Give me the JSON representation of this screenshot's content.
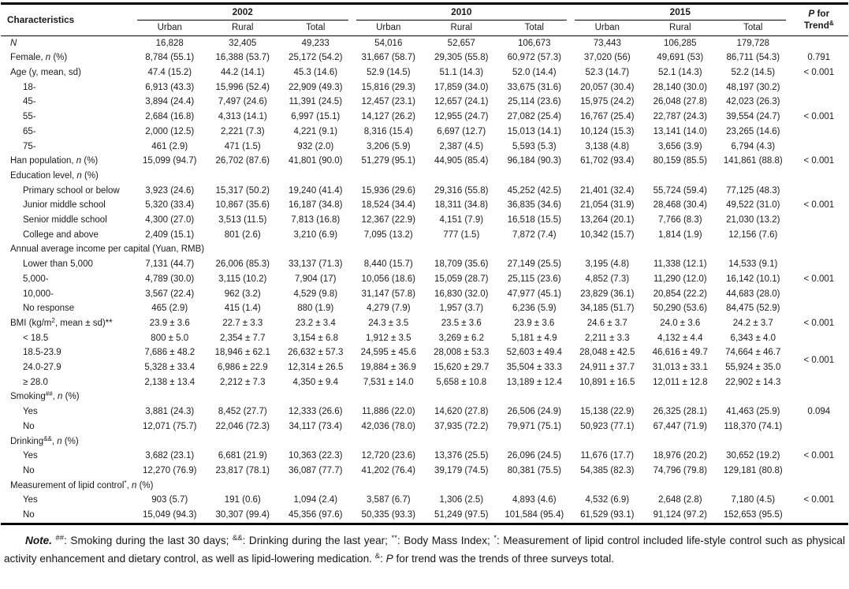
{
  "table": {
    "title_col": "Characteristics",
    "p_header_line1": [
      [
        "P",
        "i"
      ],
      [
        " for",
        ""
      ]
    ],
    "p_header_line2": [
      [
        "Trend",
        ""
      ],
      [
        "&",
        "sup"
      ]
    ],
    "year_groups": [
      {
        "label": "2002",
        "cols": [
          "Urban",
          "Rural",
          "Total"
        ]
      },
      {
        "label": "2010",
        "cols": [
          "Urban",
          "Rural",
          "Total"
        ]
      },
      {
        "label": "2015",
        "cols": [
          "Urban",
          "Rural",
          "Total"
        ]
      }
    ],
    "rows": [
      {
        "label": [
          [
            "N",
            "i"
          ]
        ],
        "indent": false,
        "cells": [
          "16,828",
          "32,405",
          "49,233",
          "54,016",
          "52,657",
          "106,673",
          "73,443",
          "106,285",
          "179,728"
        ],
        "p": ""
      },
      {
        "label": [
          [
            "Female, ",
            ""
          ],
          [
            "n",
            "i"
          ],
          [
            " (%)",
            ""
          ]
        ],
        "indent": false,
        "cells": [
          "8,784 (55.1)",
          "16,388 (53.7)",
          "25,172 (54.2)",
          "31,667 (58.7)",
          "29,305 (55.8)",
          "60,972 (57.3)",
          "37,020 (56)",
          "49,691 (53)",
          "86,711 (54.3)"
        ],
        "p": "0.791"
      },
      {
        "label": [
          [
            "Age (y, mean, sd)",
            ""
          ]
        ],
        "indent": false,
        "cells": [
          "47.4 (15.2)",
          "44.2 (14.1)",
          "45.3 (14.6)",
          "52.9 (14.5)",
          "51.1 (14.3)",
          "52.0 (14.4)",
          "52.3 (14.7)",
          "52.1 (14.3)",
          "52.2 (14.5)"
        ],
        "p": "< 0.001"
      },
      {
        "label": [
          [
            "18-",
            ""
          ]
        ],
        "indent": true,
        "cells": [
          "6,913 (43.3)",
          "15,996 (52.4)",
          "22,909 (49.3)",
          "15,816 (29.3)",
          "17,859 (34.0)",
          "33,675 (31.6)",
          "20,057 (30.4)",
          "28,140 (30.0)",
          "48,197 (30.2)"
        ],
        "p": ""
      },
      {
        "label": [
          [
            "45-",
            ""
          ]
        ],
        "indent": true,
        "cells": [
          "3,894 (24.4)",
          "7,497 (24.6)",
          "11,391 (24.5)",
          "12,457 (23.1)",
          "12,657 (24.1)",
          "25,114 (23.6)",
          "15,975 (24.2)",
          "26,048 (27.8)",
          "42,023 (26.3)"
        ],
        "p": ""
      },
      {
        "label": [
          [
            "55-",
            ""
          ]
        ],
        "indent": true,
        "cells": [
          "2,684 (16.8)",
          "4,313 (14.1)",
          "6,997 (15.1)",
          "14,127 (26.2)",
          "12,955 (24.7)",
          "27,082 (25.4)",
          "16,767 (25.4)",
          "22,787 (24.3)",
          "39,554 (24.7)"
        ],
        "p": "< 0.001"
      },
      {
        "label": [
          [
            "65-",
            ""
          ]
        ],
        "indent": true,
        "cells": [
          "2,000 (12.5)",
          "2,221 (7.3)",
          "4,221 (9.1)",
          "8,316 (15.4)",
          "6,697 (12.7)",
          "15,013 (14.1)",
          "10,124 (15.3)",
          "13,141 (14.0)",
          "23,265 (14.6)"
        ],
        "p": ""
      },
      {
        "label": [
          [
            "75-",
            ""
          ]
        ],
        "indent": true,
        "cells": [
          "461 (2.9)",
          "471 (1.5)",
          "932 (2.0)",
          "3,206 (5.9)",
          "2,387 (4.5)",
          "5,593 (5.3)",
          "3,138 (4.8)",
          "3,656 (3.9)",
          "6,794 (4.3)"
        ],
        "p": ""
      },
      {
        "label": [
          [
            "Han population, ",
            ""
          ],
          [
            "n",
            "i"
          ],
          [
            " (%)",
            ""
          ]
        ],
        "indent": false,
        "cells": [
          "15,099 (94.7)",
          "26,702 (87.6)",
          "41,801 (90.0)",
          "51,279 (95.1)",
          "44,905 (85.4)",
          "96,184 (90.3)",
          "61,702 (93.4)",
          "80,159 (85.5)",
          "141,861 (88.8)"
        ],
        "p": "< 0.001"
      },
      {
        "label": [
          [
            "Education level, ",
            ""
          ],
          [
            "n",
            "i"
          ],
          [
            " (%)",
            ""
          ]
        ],
        "indent": false,
        "cells": null,
        "p": ""
      },
      {
        "label": [
          [
            "Primary school or below",
            ""
          ]
        ],
        "indent": true,
        "cells": [
          "3,923 (24.6)",
          "15,317 (50.2)",
          "19,240 (41.4)",
          "15,936 (29.6)",
          "29,316 (55.8)",
          "45,252 (42.5)",
          "21,401 (32.4)",
          "55,724 (59.4)",
          "77,125 (48.3)"
        ],
        "p": ""
      },
      {
        "label": [
          [
            "Junior middle school",
            ""
          ]
        ],
        "indent": true,
        "cells": [
          "5,320 (33.4)",
          "10,867 (35.6)",
          "16,187 (34.8)",
          "18,524 (34.4)",
          "18,311 (34.8)",
          "36,835 (34.6)",
          "21,054 (31.9)",
          "28,468 (30.4)",
          "49,522 (31.0)"
        ],
        "p": "< 0.001"
      },
      {
        "label": [
          [
            "Senior middle school",
            ""
          ]
        ],
        "indent": true,
        "cells": [
          "4,300 (27.0)",
          "3,513 (11.5)",
          "7,813 (16.8)",
          "12,367 (22.9)",
          "4,151 (7.9)",
          "16,518 (15.5)",
          "13,264 (20.1)",
          "7,766 (8.3)",
          "21,030 (13.2)"
        ],
        "p": ""
      },
      {
        "label": [
          [
            "College and above",
            ""
          ]
        ],
        "indent": true,
        "cells": [
          "2,409 (15.1)",
          "801 (2.6)",
          "3,210 (6.9)",
          "7,095 (13.2)",
          "777 (1.5)",
          "7,872 (7.4)",
          "10,342 (15.7)",
          "1,814 (1.9)",
          "12,156 (7.6)"
        ],
        "p": ""
      },
      {
        "label": [
          [
            "Annual average income per capital (Yuan, RMB)",
            ""
          ]
        ],
        "indent": false,
        "cells": null,
        "p": ""
      },
      {
        "label": [
          [
            "Lower than 5,000",
            ""
          ]
        ],
        "indent": true,
        "cells": [
          "7,131 (44.7)",
          "26,006 (85.3)",
          "33,137 (71.3)",
          "8,440 (15.7)",
          "18,709 (35.6)",
          "27,149 (25.5)",
          "3,195 (4.8)",
          "11,338 (12.1)",
          "14,533 (9.1)"
        ],
        "p": ""
      },
      {
        "label": [
          [
            "5,000-",
            ""
          ]
        ],
        "indent": true,
        "cells": [
          "4,789 (30.0)",
          "3,115 (10.2)",
          "7,904 (17)",
          "10,056 (18.6)",
          "15,059 (28.7)",
          "25,115 (23.6)",
          "4,852 (7.3)",
          "11,290 (12.0)",
          "16,142 (10.1)"
        ],
        "p": "< 0.001"
      },
      {
        "label": [
          [
            "10,000-",
            ""
          ]
        ],
        "indent": true,
        "cells": [
          "3,567 (22.4)",
          "962 (3.2)",
          "4,529 (9.8)",
          "31,147 (57.8)",
          "16,830 (32.0)",
          "47,977 (45.1)",
          "23,829 (36.1)",
          "20,854 (22.2)",
          "44,683 (28.0)"
        ],
        "p": ""
      },
      {
        "label": [
          [
            "No response",
            ""
          ]
        ],
        "indent": true,
        "cells": [
          "465 (2.9)",
          "415 (1.4)",
          "880 (1.9)",
          "4,279 (7.9)",
          "1,957 (3.7)",
          "6,236 (5.9)",
          "34,185 (51.7)",
          "50,290 (53.6)",
          "84,475 (52.9)"
        ],
        "p": ""
      },
      {
        "label": [
          [
            "BMI (kg/m",
            ""
          ],
          [
            "2",
            "sup"
          ],
          [
            ", mean ± sd)**",
            ""
          ]
        ],
        "indent": false,
        "cells": [
          "23.9 ± 3.6",
          "22.7 ± 3.3",
          "23.2 ± 3.4",
          "24.3 ± 3.5",
          "23.5 ± 3.6",
          "23.9 ± 3.6",
          "24.6 ± 3.7",
          "24.0 ± 3.6",
          "24.2 ± 3.7"
        ],
        "p": "< 0.001"
      },
      {
        "label": [
          [
            "< 18.5",
            ""
          ]
        ],
        "indent": true,
        "cells": [
          "800 ± 5.0",
          "2,354 ± 7.7",
          "3,154 ± 6.8",
          "1,912 ± 3.5",
          "3,269 ± 6.2",
          "5,181 ± 4.9",
          "2,211 ± 3.3",
          "4,132 ± 4.4",
          "6,343 ± 4.0"
        ],
        "p": ""
      },
      {
        "label": [
          [
            "18.5-23.9",
            ""
          ]
        ],
        "indent": true,
        "cells": [
          "7,686 ± 48.2",
          "18,946 ± 62.1",
          "26,632 ± 57.3",
          "24,595 ± 45.6",
          "28,008 ± 53.3",
          "52,603 ± 49.4",
          "28,048 ± 42.5",
          "46,616 ± 49.7",
          "74,664 ± 46.7"
        ],
        "p": "< 0.001",
        "p_span": 2
      },
      {
        "label": [
          [
            "24.0-27.9",
            ""
          ]
        ],
        "indent": true,
        "cells": [
          "5,328 ± 33.4",
          "6,986 ± 22.9",
          "12,314 ± 26.5",
          "19,884 ± 36.9",
          "15,620 ± 29.7",
          "35,504 ± 33.3",
          "24,911 ± 37.7",
          "31,013 ± 33.1",
          "55,924 ± 35.0"
        ],
        "p": null
      },
      {
        "label": [
          [
            "≥ 28.0",
            ""
          ]
        ],
        "indent": true,
        "cells": [
          "2,138 ± 13.4",
          "2,212 ± 7.3",
          "4,350 ± 9.4",
          "7,531 ± 14.0",
          "5,658 ± 10.8",
          "13,189 ± 12.4",
          "10,891 ± 16.5",
          "12,011 ± 12.8",
          "22,902 ± 14.3"
        ],
        "p": ""
      },
      {
        "label": [
          [
            "Smoking",
            ""
          ],
          [
            "##",
            "sup"
          ],
          [
            ", ",
            ""
          ],
          [
            "n",
            "i"
          ],
          [
            " (%)",
            ""
          ]
        ],
        "indent": false,
        "cells": null,
        "p": ""
      },
      {
        "label": [
          [
            "Yes",
            ""
          ]
        ],
        "indent": true,
        "cells": [
          "3,881 (24.3)",
          "8,452 (27.7)",
          "12,333 (26.6)",
          "11,886 (22.0)",
          "14,620 (27.8)",
          "26,506 (24.9)",
          "15,138 (22.9)",
          "26,325 (28.1)",
          "41,463 (25.9)"
        ],
        "p": "0.094"
      },
      {
        "label": [
          [
            "No",
            ""
          ]
        ],
        "indent": true,
        "cells": [
          "12,071 (75.7)",
          "22,046 (72.3)",
          "34,117 (73.4)",
          "42,036 (78.0)",
          "37,935 (72.2)",
          "79,971 (75.1)",
          "50,923 (77.1)",
          "67,447 (71.9)",
          "118,370 (74.1)"
        ],
        "p": ""
      },
      {
        "label": [
          [
            "Drinking",
            ""
          ],
          [
            "&&",
            "sup"
          ],
          [
            ", ",
            ""
          ],
          [
            "n",
            "i"
          ],
          [
            " (%)",
            ""
          ]
        ],
        "indent": false,
        "cells": null,
        "p": ""
      },
      {
        "label": [
          [
            "Yes",
            ""
          ]
        ],
        "indent": true,
        "cells": [
          "3,682 (23.1)",
          "6,681 (21.9)",
          "10,363 (22.3)",
          "12,720 (23.6)",
          "13,376 (25.5)",
          "26,096 (24.5)",
          "11,676 (17.7)",
          "18,976 (20.2)",
          "30,652 (19.2)"
        ],
        "p": "< 0.001"
      },
      {
        "label": [
          [
            "No",
            ""
          ]
        ],
        "indent": true,
        "cells": [
          "12,270 (76.9)",
          "23,817 (78.1)",
          "36,087 (77.7)",
          "41,202 (76.4)",
          "39,179 (74.5)",
          "80,381 (75.5)",
          "54,385 (82.3)",
          "74,796 (79.8)",
          "129,181 (80.8)"
        ],
        "p": ""
      },
      {
        "label": [
          [
            "Measurement of lipid control",
            ""
          ],
          [
            "*",
            "sup"
          ],
          [
            ", ",
            ""
          ],
          [
            "n",
            "i"
          ],
          [
            " (%)",
            ""
          ]
        ],
        "indent": false,
        "cells": null,
        "p": ""
      },
      {
        "label": [
          [
            "Yes",
            ""
          ]
        ],
        "indent": true,
        "cells": [
          "903 (5.7)",
          "191 (0.6)",
          "1,094 (2.4)",
          "3,587 (6.7)",
          "1,306 (2.5)",
          "4,893 (4.6)",
          "4,532 (6.9)",
          "2,648 (2.8)",
          "7,180 (4.5)"
        ],
        "p": "< 0.001"
      },
      {
        "label": [
          [
            "No",
            ""
          ]
        ],
        "indent": true,
        "cells": [
          "15,049 (94.3)",
          "30,307 (99.4)",
          "45,356 (97.6)",
          "50,335 (93.3)",
          "51,249 (97.5)",
          "101,584 (95.4)",
          "61,529 (93.1)",
          "91,124 (97.2)",
          "152,653 (95.5)"
        ],
        "p": ""
      }
    ]
  },
  "note": {
    "segments": [
      [
        "Note.",
        "bi"
      ],
      [
        " ",
        ""
      ],
      [
        "##",
        "sup"
      ],
      [
        ": Smoking during the last 30 days; ",
        ""
      ],
      [
        "&&",
        "sup"
      ],
      [
        ": Drinking during the last year; ",
        ""
      ],
      [
        "**",
        "sup"
      ],
      [
        ": Body Mass Index; ",
        ""
      ],
      [
        "*",
        "sup"
      ],
      [
        ": Measurement of lipid control included life-style control such as physical activity enhancement and dietary control, as well as lipid-lowering medication. ",
        ""
      ],
      [
        "&",
        "sup"
      ],
      [
        ": ",
        ""
      ],
      [
        "P",
        "i"
      ],
      [
        " for trend was the trends of three surveys total.",
        ""
      ]
    ]
  },
  "colors": {
    "text": "#1b1b1b",
    "rule": "#000000",
    "background": "#ffffff"
  }
}
